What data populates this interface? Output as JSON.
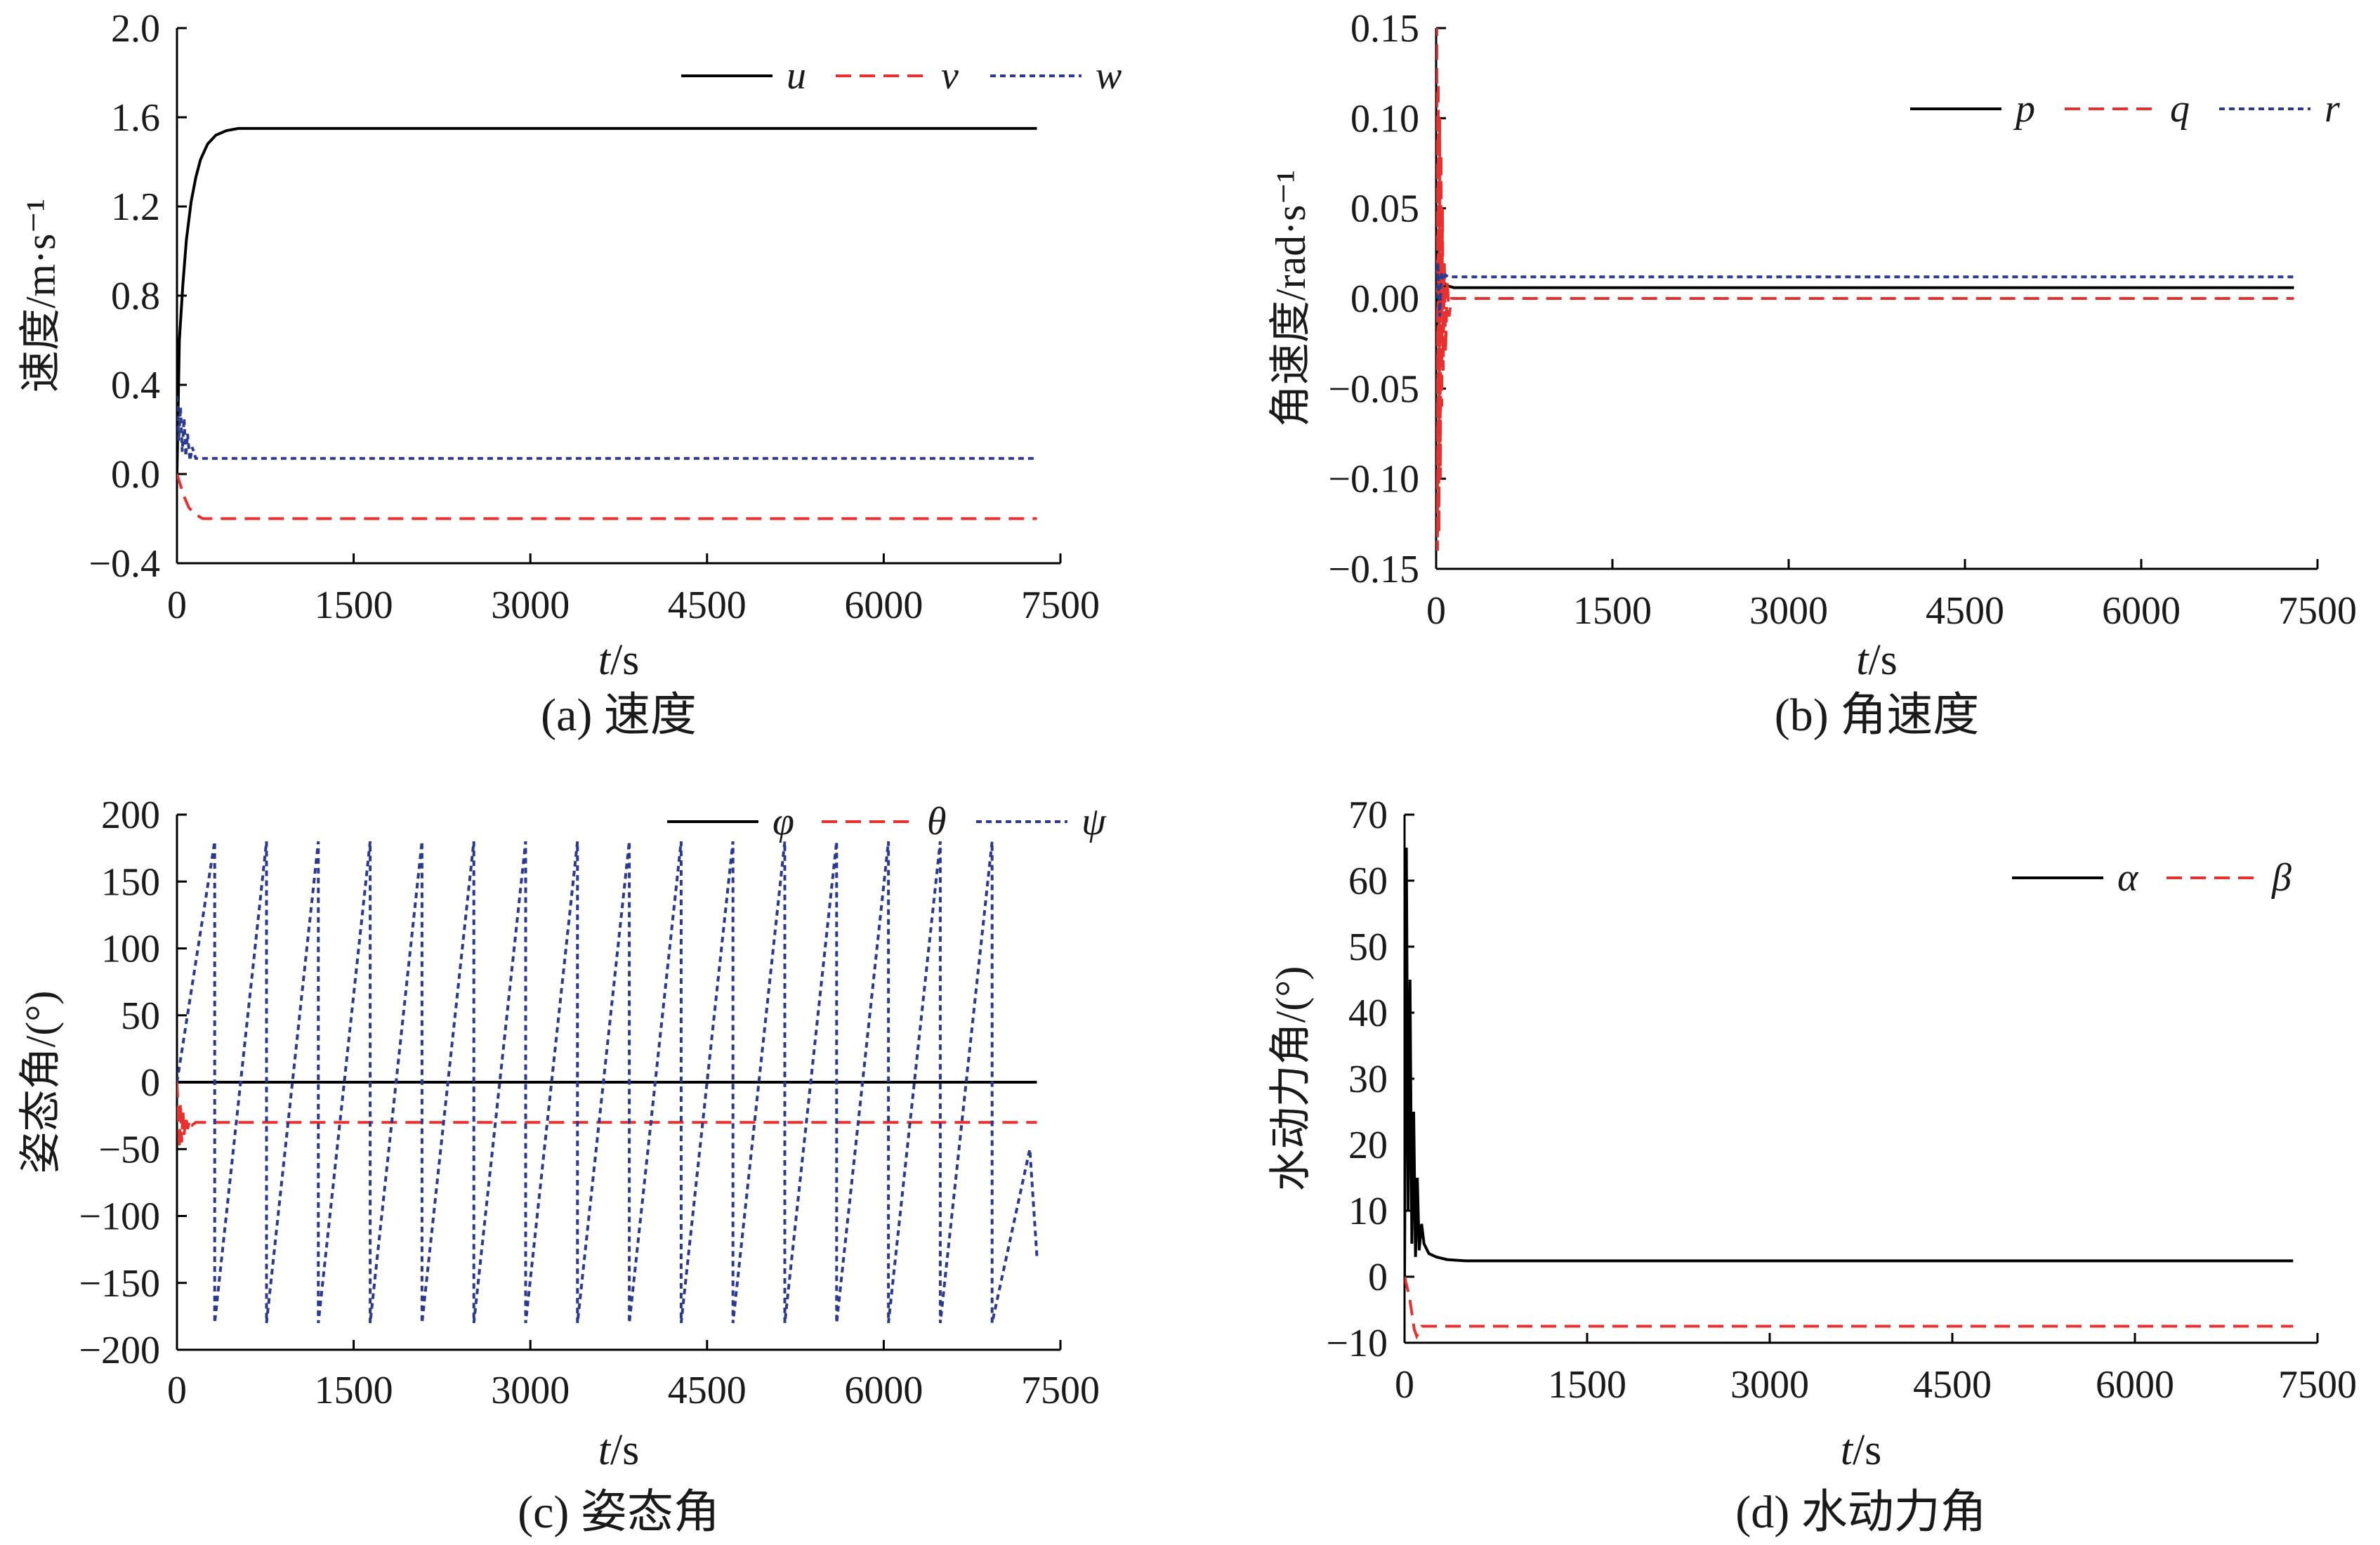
{
  "colors": {
    "black": "#000000",
    "red": "#e8312f",
    "blue": "#2b3a8f",
    "axis": "#000000"
  },
  "chart_data": [
    {
      "id": "a",
      "type": "line",
      "caption": "(a)  速度",
      "ylabel": "速度/m·s⁻¹",
      "xlabel_var": "t",
      "xlabel_unit": "/s",
      "xlim": [
        0,
        7500
      ],
      "ylim": [
        -0.4,
        2.0
      ],
      "xticks": [
        0,
        1500,
        3000,
        4500,
        6000,
        7500
      ],
      "yticks": [
        2.0,
        1.6,
        1.2,
        0.8,
        0.4,
        0.0,
        -0.4
      ],
      "ytick_labels": [
        "2.0",
        "1.6",
        "1.2",
        "0.8",
        "0.4",
        "0.0",
        "−0.4"
      ],
      "legend_position": "top-right",
      "series": [
        {
          "name": "u",
          "color": "#000000",
          "dash": "solid",
          "x": [
            0,
            20,
            50,
            80,
            120,
            160,
            200,
            260,
            330,
            420,
            520,
            700,
            7300
          ],
          "y": [
            0.0,
            0.6,
            0.85,
            1.05,
            1.22,
            1.33,
            1.41,
            1.48,
            1.52,
            1.54,
            1.55,
            1.55,
            1.55
          ]
        },
        {
          "name": "v",
          "color": "#e8312f",
          "dash": "dashed",
          "x": [
            0,
            30,
            60,
            100,
            150,
            220,
            300,
            7300
          ],
          "y": [
            0.0,
            -0.05,
            -0.1,
            -0.15,
            -0.18,
            -0.2,
            -0.2,
            -0.2
          ]
        },
        {
          "name": "w",
          "color": "#2b3a8f",
          "dash": "dotted",
          "x": [
            0,
            15,
            30,
            45,
            60,
            75,
            90,
            110,
            130,
            160,
            200,
            260,
            7300
          ],
          "y": [
            0.35,
            0.15,
            0.3,
            0.1,
            0.25,
            0.08,
            0.18,
            0.06,
            0.12,
            0.07,
            0.07,
            0.07,
            0.07
          ]
        }
      ]
    },
    {
      "id": "b",
      "type": "line",
      "caption": "(b)  角速度",
      "ylabel": "角速度/rad·s⁻¹",
      "xlabel_var": "t",
      "xlabel_unit": "/s",
      "xlim": [
        0,
        7500
      ],
      "ylim": [
        -0.15,
        0.15
      ],
      "xticks": [
        0,
        1500,
        3000,
        4500,
        6000,
        7500
      ],
      "yticks": [
        0.15,
        0.1,
        0.05,
        0.0,
        -0.05,
        -0.1,
        -0.15
      ],
      "ytick_labels": [
        "0.15",
        "0.10",
        "0.05",
        "0.00",
        "−0.05",
        "−0.10",
        "−0.15"
      ],
      "legend_position": "top-right",
      "series": [
        {
          "name": "p",
          "color": "#000000",
          "dash": "solid",
          "x": [
            0,
            10,
            20,
            30,
            40,
            50,
            60,
            80,
            100,
            150,
            7300
          ],
          "y": [
            0.0,
            0.03,
            -0.02,
            0.02,
            -0.01,
            0.015,
            0.005,
            0.008,
            0.007,
            0.006,
            0.006
          ]
        },
        {
          "name": "q",
          "color": "#e8312f",
          "dash": "dashed",
          "x": [
            0,
            6,
            12,
            18,
            24,
            30,
            36,
            42,
            48,
            54,
            60,
            70,
            80,
            95,
            110,
            130,
            7300
          ],
          "y": [
            0.0,
            0.15,
            -0.14,
            0.12,
            -0.13,
            0.1,
            -0.1,
            0.08,
            -0.06,
            0.05,
            -0.04,
            0.02,
            -0.03,
            0.01,
            -0.01,
            0.0,
            0.0
          ]
        },
        {
          "name": "r",
          "color": "#2b3a8f",
          "dash": "dotted",
          "x": [
            0,
            15,
            30,
            45,
            60,
            80,
            100,
            130,
            7300
          ],
          "y": [
            0.0,
            0.02,
            -0.01,
            0.015,
            0.01,
            0.013,
            0.012,
            0.012,
            0.012
          ]
        }
      ]
    },
    {
      "id": "c",
      "type": "line",
      "caption": "(c)  姿态角",
      "ylabel": "姿态角/(°)",
      "xlabel_var": "t",
      "xlabel_unit": "/s",
      "xlim": [
        0,
        7500
      ],
      "ylim": [
        -200,
        200
      ],
      "xticks": [
        0,
        1500,
        3000,
        4500,
        6000,
        7500
      ],
      "yticks": [
        200,
        150,
        100,
        50,
        0,
        -50,
        -100,
        -150,
        -200
      ],
      "ytick_labels": [
        "200",
        "150",
        "100",
        "50",
        "0",
        "−50",
        "−100",
        "−150",
        "−200"
      ],
      "legend_position": "top-right",
      "series": [
        {
          "name": "φ",
          "color": "#000000",
          "dash": "solid",
          "x": [
            0,
            7300
          ],
          "y": [
            0,
            0
          ]
        },
        {
          "name": "θ",
          "color": "#e8312f",
          "dash": "dashed",
          "x": [
            0,
            10,
            20,
            30,
            40,
            50,
            60,
            75,
            90,
            110,
            130,
            160,
            7300
          ],
          "y": [
            0,
            -20,
            -50,
            -15,
            -45,
            -20,
            -40,
            -25,
            -35,
            -28,
            -32,
            -30,
            -30
          ]
        },
        {
          "name": "ψ",
          "color": "#2b3a8f",
          "dash": "dotted",
          "x": [
            0,
            320,
            320,
            760,
            760,
            1200,
            1200,
            1640,
            1640,
            2080,
            2080,
            2520,
            2520,
            2960,
            2960,
            3400,
            3400,
            3840,
            3840,
            4280,
            4280,
            4720,
            4720,
            5160,
            5160,
            5600,
            5600,
            6040,
            6040,
            6480,
            6480,
            6920,
            6920,
            7240,
            7300
          ],
          "y": [
            0,
            180,
            -180,
            180,
            -180,
            180,
            -180,
            180,
            -180,
            180,
            -180,
            180,
            -180,
            180,
            -180,
            180,
            -180,
            180,
            -180,
            180,
            -180,
            180,
            -180,
            180,
            -180,
            180,
            -180,
            180,
            -180,
            180,
            -180,
            180,
            -180,
            -50,
            -130
          ]
        }
      ]
    },
    {
      "id": "d",
      "type": "line",
      "caption": "(d)  水动力角",
      "ylabel": "水动力角/(°)",
      "xlabel_var": "t",
      "xlabel_unit": "/s",
      "xlim": [
        0,
        7500
      ],
      "ylim": [
        -10,
        70
      ],
      "xticks": [
        0,
        1500,
        3000,
        4500,
        6000,
        7500
      ],
      "yticks": [
        70,
        60,
        50,
        40,
        30,
        20,
        10,
        0,
        -10
      ],
      "ytick_labels": [
        "70",
        "60",
        "50",
        "40",
        "30",
        "20",
        "10",
        "0",
        "−10"
      ],
      "legend_position": "top-right",
      "series": [
        {
          "name": "α",
          "color": "#000000",
          "dash": "solid",
          "x": [
            0,
            15,
            30,
            45,
            60,
            75,
            90,
            105,
            120,
            140,
            160,
            200,
            260,
            350,
            500,
            7300
          ],
          "y": [
            0,
            65,
            10,
            45,
            5,
            25,
            3,
            15,
            4,
            8,
            5,
            3.5,
            3,
            2.6,
            2.4,
            2.4
          ]
        },
        {
          "name": "β",
          "color": "#e8312f",
          "dash": "dashed",
          "x": [
            0,
            40,
            80,
            100,
            140,
            200,
            7300
          ],
          "y": [
            0,
            -3,
            -8,
            -9,
            -7.5,
            -7.5,
            -7.5
          ]
        }
      ]
    }
  ]
}
